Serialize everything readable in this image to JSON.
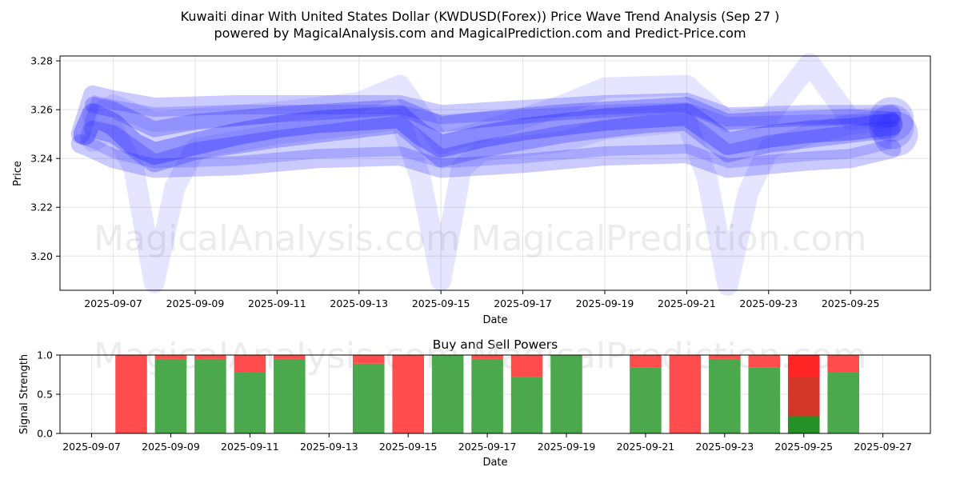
{
  "chart_data": [
    {
      "type": "line",
      "title_line1": "Kuwaiti dinar With United States Dollar (KWDUSD(Forex)) Price Wave Trend Analysis (Sep 27 )",
      "title_line2": "powered by MagicalAnalysis.com and MagicalPrediction.com and Predict-Price.com",
      "xlabel": "Date",
      "ylabel": "Price",
      "watermark_left": "MagicalAnalysis.com",
      "watermark_right": "MagicalPrediction.com",
      "x_range_days": [
        5.7,
        26.95
      ],
      "ylim": [
        3.186,
        3.282
      ],
      "x_ticks": [
        {
          "day": 7,
          "label": "2025-09-07"
        },
        {
          "day": 9,
          "label": "2025-09-09"
        },
        {
          "day": 11,
          "label": "2025-09-11"
        },
        {
          "day": 13,
          "label": "2025-09-13"
        },
        {
          "day": 15,
          "label": "2025-09-15"
        },
        {
          "day": 17,
          "label": "2025-09-17"
        },
        {
          "day": 19,
          "label": "2025-09-19"
        },
        {
          "day": 21,
          "label": "2025-09-21"
        },
        {
          "day": 23,
          "label": "2025-09-23"
        },
        {
          "day": 25,
          "label": "2025-09-25"
        }
      ],
      "y_ticks": [
        {
          "value": 3.2,
          "label": "3.20"
        },
        {
          "value": 3.22,
          "label": "3.22"
        },
        {
          "value": 3.24,
          "label": "3.24"
        },
        {
          "value": 3.26,
          "label": "3.26"
        },
        {
          "value": 3.28,
          "label": "3.28"
        }
      ],
      "grid": true,
      "series": [
        {
          "name": "wave-deep",
          "x": [
            6.5,
            7.0,
            7.5,
            8.0,
            8.5,
            9.0,
            11.0,
            13.0,
            14.0,
            14.5,
            15.0,
            15.5,
            16.0,
            18.0,
            19.0,
            21.0,
            21.5,
            22.0,
            22.5,
            23.0,
            24.0,
            24.5,
            25.0,
            25.5,
            26.0
          ],
          "values": [
            3.247,
            3.252,
            3.236,
            3.189,
            3.228,
            3.244,
            3.25,
            3.254,
            3.256,
            3.232,
            3.19,
            3.236,
            3.243,
            3.247,
            3.252,
            3.255,
            3.232,
            3.188,
            3.226,
            3.244,
            3.25,
            3.252,
            3.254,
            3.255,
            3.255
          ]
        },
        {
          "name": "wave-high",
          "x": [
            6.5,
            7.0,
            8.0,
            11.0,
            13.0,
            14.0,
            15.0,
            16.0,
            18.0,
            19.0,
            21.0,
            22.0,
            23.0,
            24.0,
            25.0,
            26.0
          ],
          "values": [
            3.257,
            3.262,
            3.255,
            3.259,
            3.263,
            3.27,
            3.246,
            3.251,
            3.262,
            3.269,
            3.27,
            3.255,
            3.257,
            3.279,
            3.256,
            3.257
          ]
        },
        {
          "name": "wave-upper",
          "x": [
            6.2,
            6.5,
            7.0,
            8.0,
            10.0,
            12.0,
            14.0,
            15.0,
            17.0,
            19.0,
            21.0,
            22.0,
            24.0,
            25.0,
            26.0
          ],
          "values": [
            3.25,
            3.266,
            3.264,
            3.261,
            3.262,
            3.262,
            3.262,
            3.258,
            3.26,
            3.262,
            3.263,
            3.257,
            3.258,
            3.258,
            3.258
          ]
        },
        {
          "name": "wave-lower",
          "x": [
            6.2,
            6.5,
            7.0,
            8.0,
            10.0,
            12.0,
            14.0,
            15.0,
            17.0,
            19.0,
            21.0,
            22.0,
            24.0,
            25.0,
            26.0
          ],
          "values": [
            3.246,
            3.244,
            3.24,
            3.236,
            3.237,
            3.24,
            3.241,
            3.236,
            3.238,
            3.241,
            3.242,
            3.236,
            3.239,
            3.24,
            3.244
          ]
        },
        {
          "name": "wave-core",
          "x": [
            6.3,
            6.5,
            7.0,
            7.5,
            8.0,
            9.0,
            10.0,
            11.0,
            12.0,
            13.0,
            14.0,
            14.5,
            15.0,
            16.0,
            17.0,
            18.0,
            19.0,
            20.0,
            21.0,
            21.5,
            22.0,
            23.0,
            24.0,
            25.0,
            26.0
          ],
          "values": [
            3.25,
            3.258,
            3.254,
            3.246,
            3.242,
            3.246,
            3.25,
            3.253,
            3.255,
            3.256,
            3.257,
            3.25,
            3.245,
            3.249,
            3.252,
            3.254,
            3.256,
            3.257,
            3.258,
            3.252,
            3.246,
            3.249,
            3.251,
            3.252,
            3.254
          ]
        },
        {
          "name": "wave-core-2",
          "x": [
            6.5,
            7.0,
            8.0,
            9.0,
            11.0,
            13.0,
            14.0,
            15.0,
            16.0,
            18.0,
            20.0,
            21.0,
            22.0,
            23.0,
            25.0,
            26.0
          ],
          "values": [
            3.252,
            3.25,
            3.238,
            3.243,
            3.248,
            3.252,
            3.254,
            3.24,
            3.244,
            3.25,
            3.254,
            3.255,
            3.242,
            3.246,
            3.25,
            3.252
          ]
        },
        {
          "name": "wave-core-3",
          "x": [
            6.5,
            7.0,
            8.0,
            9.0,
            11.0,
            13.0,
            14.0,
            15.0,
            16.0,
            18.0,
            20.0,
            21.0,
            22.0,
            23.0,
            25.0,
            26.0
          ],
          "values": [
            3.262,
            3.26,
            3.252,
            3.255,
            3.258,
            3.26,
            3.261,
            3.254,
            3.256,
            3.259,
            3.261,
            3.262,
            3.255,
            3.256,
            3.257,
            3.256
          ]
        }
      ],
      "end_blobs": [
        {
          "day": 26.0,
          "value": 3.256
        },
        {
          "day": 26.0,
          "value": 3.253
        },
        {
          "day": 26.1,
          "value": 3.25
        }
      ]
    },
    {
      "type": "bar",
      "title": "Buy and Sell Powers",
      "xlabel": "Date",
      "ylabel": "Signal Strength",
      "x_range_days": [
        6.2,
        28.2
      ],
      "ylim": [
        0,
        1
      ],
      "x_ticks": [
        {
          "day": 7,
          "label": "2025-09-07"
        },
        {
          "day": 9,
          "label": "2025-09-09"
        },
        {
          "day": 11,
          "label": "2025-09-11"
        },
        {
          "day": 13,
          "label": "2025-09-13"
        },
        {
          "day": 15,
          "label": "2025-09-15"
        },
        {
          "day": 17,
          "label": "2025-09-17"
        },
        {
          "day": 19,
          "label": "2025-09-19"
        },
        {
          "day": 21,
          "label": "2025-09-21"
        },
        {
          "day": 23,
          "label": "2025-09-23"
        },
        {
          "day": 25,
          "label": "2025-09-25"
        },
        {
          "day": 27,
          "label": "2025-09-27"
        }
      ],
      "y_ticks": [
        {
          "value": 0.0,
          "label": "0.0"
        },
        {
          "value": 0.5,
          "label": "0.5"
        },
        {
          "value": 1.0,
          "label": "1.0"
        }
      ],
      "grid": true,
      "colors": {
        "buy": "#4ca84c",
        "sell": "#ff4d4d"
      },
      "bars": [
        {
          "day": 8,
          "buy": 0.0,
          "sell": 1.0
        },
        {
          "day": 9,
          "buy": 0.95,
          "sell": 0.05
        },
        {
          "day": 10,
          "buy": 0.95,
          "sell": 0.05
        },
        {
          "day": 11,
          "buy": 0.78,
          "sell": 0.22
        },
        {
          "day": 12,
          "buy": 0.95,
          "sell": 0.05
        },
        {
          "day": 14,
          "buy": 0.89,
          "sell": 0.11
        },
        {
          "day": 15,
          "buy": 0.0,
          "sell": 1.0
        },
        {
          "day": 16,
          "buy": 1.0,
          "sell": 0.0
        },
        {
          "day": 17,
          "buy": 0.95,
          "sell": 0.05
        },
        {
          "day": 18,
          "buy": 0.72,
          "sell": 0.28
        },
        {
          "day": 19,
          "buy": 1.0,
          "sell": 0.0
        },
        {
          "day": 21,
          "buy": 0.84,
          "sell": 0.16
        },
        {
          "day": 22,
          "buy": 0.0,
          "sell": 1.0
        },
        {
          "day": 23,
          "buy": 0.95,
          "sell": 0.05
        },
        {
          "day": 24,
          "buy": 0.84,
          "sell": 0.16
        },
        {
          "day": 25,
          "buy": 0.22,
          "sell": 0.78
        },
        {
          "day": 26,
          "buy": 0.78,
          "sell": 0.22
        }
      ],
      "overlay_segments": [
        {
          "day": 25,
          "from": 0.0,
          "to": 0.22,
          "color": "#1e8c1e"
        },
        {
          "day": 25,
          "from": 0.22,
          "to": 0.72,
          "color": "#cc3322"
        },
        {
          "day": 25,
          "from": 0.72,
          "to": 1.0,
          "color": "#ff1f1f"
        }
      ]
    }
  ]
}
